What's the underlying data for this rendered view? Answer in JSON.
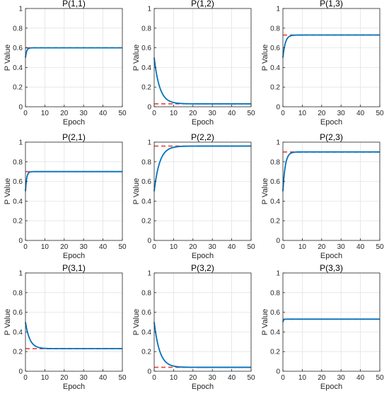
{
  "style": {
    "line_color": "#0072BD",
    "target_color": "#E8423A",
    "grid_color": "#E3E3E3",
    "axis_color": "#262626"
  },
  "chart_data": [
    {
      "type": "line",
      "title": "P(1,1)",
      "xlabel": "Epoch",
      "ylabel": "P Value",
      "xlim": [
        0,
        50
      ],
      "ylim": [
        0,
        1
      ],
      "xticks": [
        "0",
        "10",
        "20",
        "30",
        "40",
        "50"
      ],
      "yticks": [
        "0",
        "0.2",
        "0.4",
        "0.6",
        "0.8",
        "1"
      ],
      "grid": true,
      "start": 0.5,
      "target": 0.6,
      "tau": 0.6
    },
    {
      "type": "line",
      "title": "P(1,2)",
      "xlabel": "Epoch",
      "ylabel": "P Value",
      "xlim": [
        0,
        50
      ],
      "ylim": [
        0,
        1
      ],
      "xticks": [
        "0",
        "10",
        "20",
        "30",
        "40",
        "50"
      ],
      "yticks": [
        "0",
        "0.2",
        "0.4",
        "0.6",
        "0.8",
        "1"
      ],
      "grid": true,
      "start": 0.5,
      "target": 0.03,
      "tau": 2.8
    },
    {
      "type": "line",
      "title": "P(1,3)",
      "xlabel": "Epoch",
      "ylabel": "P Value",
      "xlim": [
        0,
        50
      ],
      "ylim": [
        0,
        1
      ],
      "xticks": [
        "0",
        "10",
        "20",
        "30",
        "40",
        "50"
      ],
      "yticks": [
        "0",
        "0.2",
        "0.4",
        "0.6",
        "0.8",
        "1"
      ],
      "grid": true,
      "start": 0.5,
      "target": 0.73,
      "tau": 1.2
    },
    {
      "type": "line",
      "title": "P(2,1)",
      "xlabel": "Epoch",
      "ylabel": "P Value",
      "xlim": [
        0,
        50
      ],
      "ylim": [
        0,
        1
      ],
      "xticks": [
        "0",
        "10",
        "20",
        "30",
        "40",
        "50"
      ],
      "yticks": [
        "0",
        "0.2",
        "0.4",
        "0.6",
        "0.8",
        "1"
      ],
      "grid": true,
      "start": 0.5,
      "target": 0.7,
      "tau": 0.6
    },
    {
      "type": "line",
      "title": "P(2,2)",
      "xlabel": "Epoch",
      "ylabel": "P Value",
      "xlim": [
        0,
        50
      ],
      "ylim": [
        0,
        1
      ],
      "xticks": [
        "0",
        "10",
        "20",
        "30",
        "40",
        "50"
      ],
      "yticks": [
        "0",
        "0.2",
        "0.4",
        "0.6",
        "0.8",
        "1"
      ],
      "grid": true,
      "start": 0.5,
      "target": 0.96,
      "tau": 2.8
    },
    {
      "type": "line",
      "title": "P(2,3)",
      "xlabel": "Epoch",
      "ylabel": "P Value",
      "xlim": [
        0,
        50
      ],
      "ylim": [
        0,
        1
      ],
      "xticks": [
        "0",
        "10",
        "20",
        "30",
        "40",
        "50"
      ],
      "yticks": [
        "0",
        "0.2",
        "0.4",
        "0.6",
        "0.8",
        "1"
      ],
      "grid": true,
      "start": 0.5,
      "target": 0.9,
      "tau": 1.2
    },
    {
      "type": "line",
      "title": "P(3,1)",
      "xlabel": "Epoch",
      "ylabel": "P Value",
      "xlim": [
        0,
        50
      ],
      "ylim": [
        0,
        1
      ],
      "xticks": [
        "0",
        "10",
        "20",
        "30",
        "40",
        "50"
      ],
      "yticks": [
        "0",
        "0.2",
        "0.4",
        "0.6",
        "0.8",
        "1"
      ],
      "grid": true,
      "start": 0.5,
      "target": 0.23,
      "tau": 2.2
    },
    {
      "type": "line",
      "title": "P(3,2)",
      "xlabel": "Epoch",
      "ylabel": "P Value",
      "xlim": [
        0,
        50
      ],
      "ylim": [
        0,
        1
      ],
      "xticks": [
        "0",
        "10",
        "20",
        "30",
        "40",
        "50"
      ],
      "yticks": [
        "0",
        "0.2",
        "0.4",
        "0.6",
        "0.8",
        "1"
      ],
      "grid": true,
      "start": 0.5,
      "target": 0.04,
      "tau": 2.8
    },
    {
      "type": "line",
      "title": "P(3,3)",
      "xlabel": "Epoch",
      "ylabel": "P Value",
      "xlim": [
        0,
        50
      ],
      "ylim": [
        0,
        1
      ],
      "xticks": [
        "0",
        "10",
        "20",
        "30",
        "40",
        "50"
      ],
      "yticks": [
        "0",
        "0.2",
        "0.4",
        "0.6",
        "0.8",
        "1"
      ],
      "grid": true,
      "start": 0.5,
      "target": 0.53,
      "tau": 0.3
    }
  ]
}
